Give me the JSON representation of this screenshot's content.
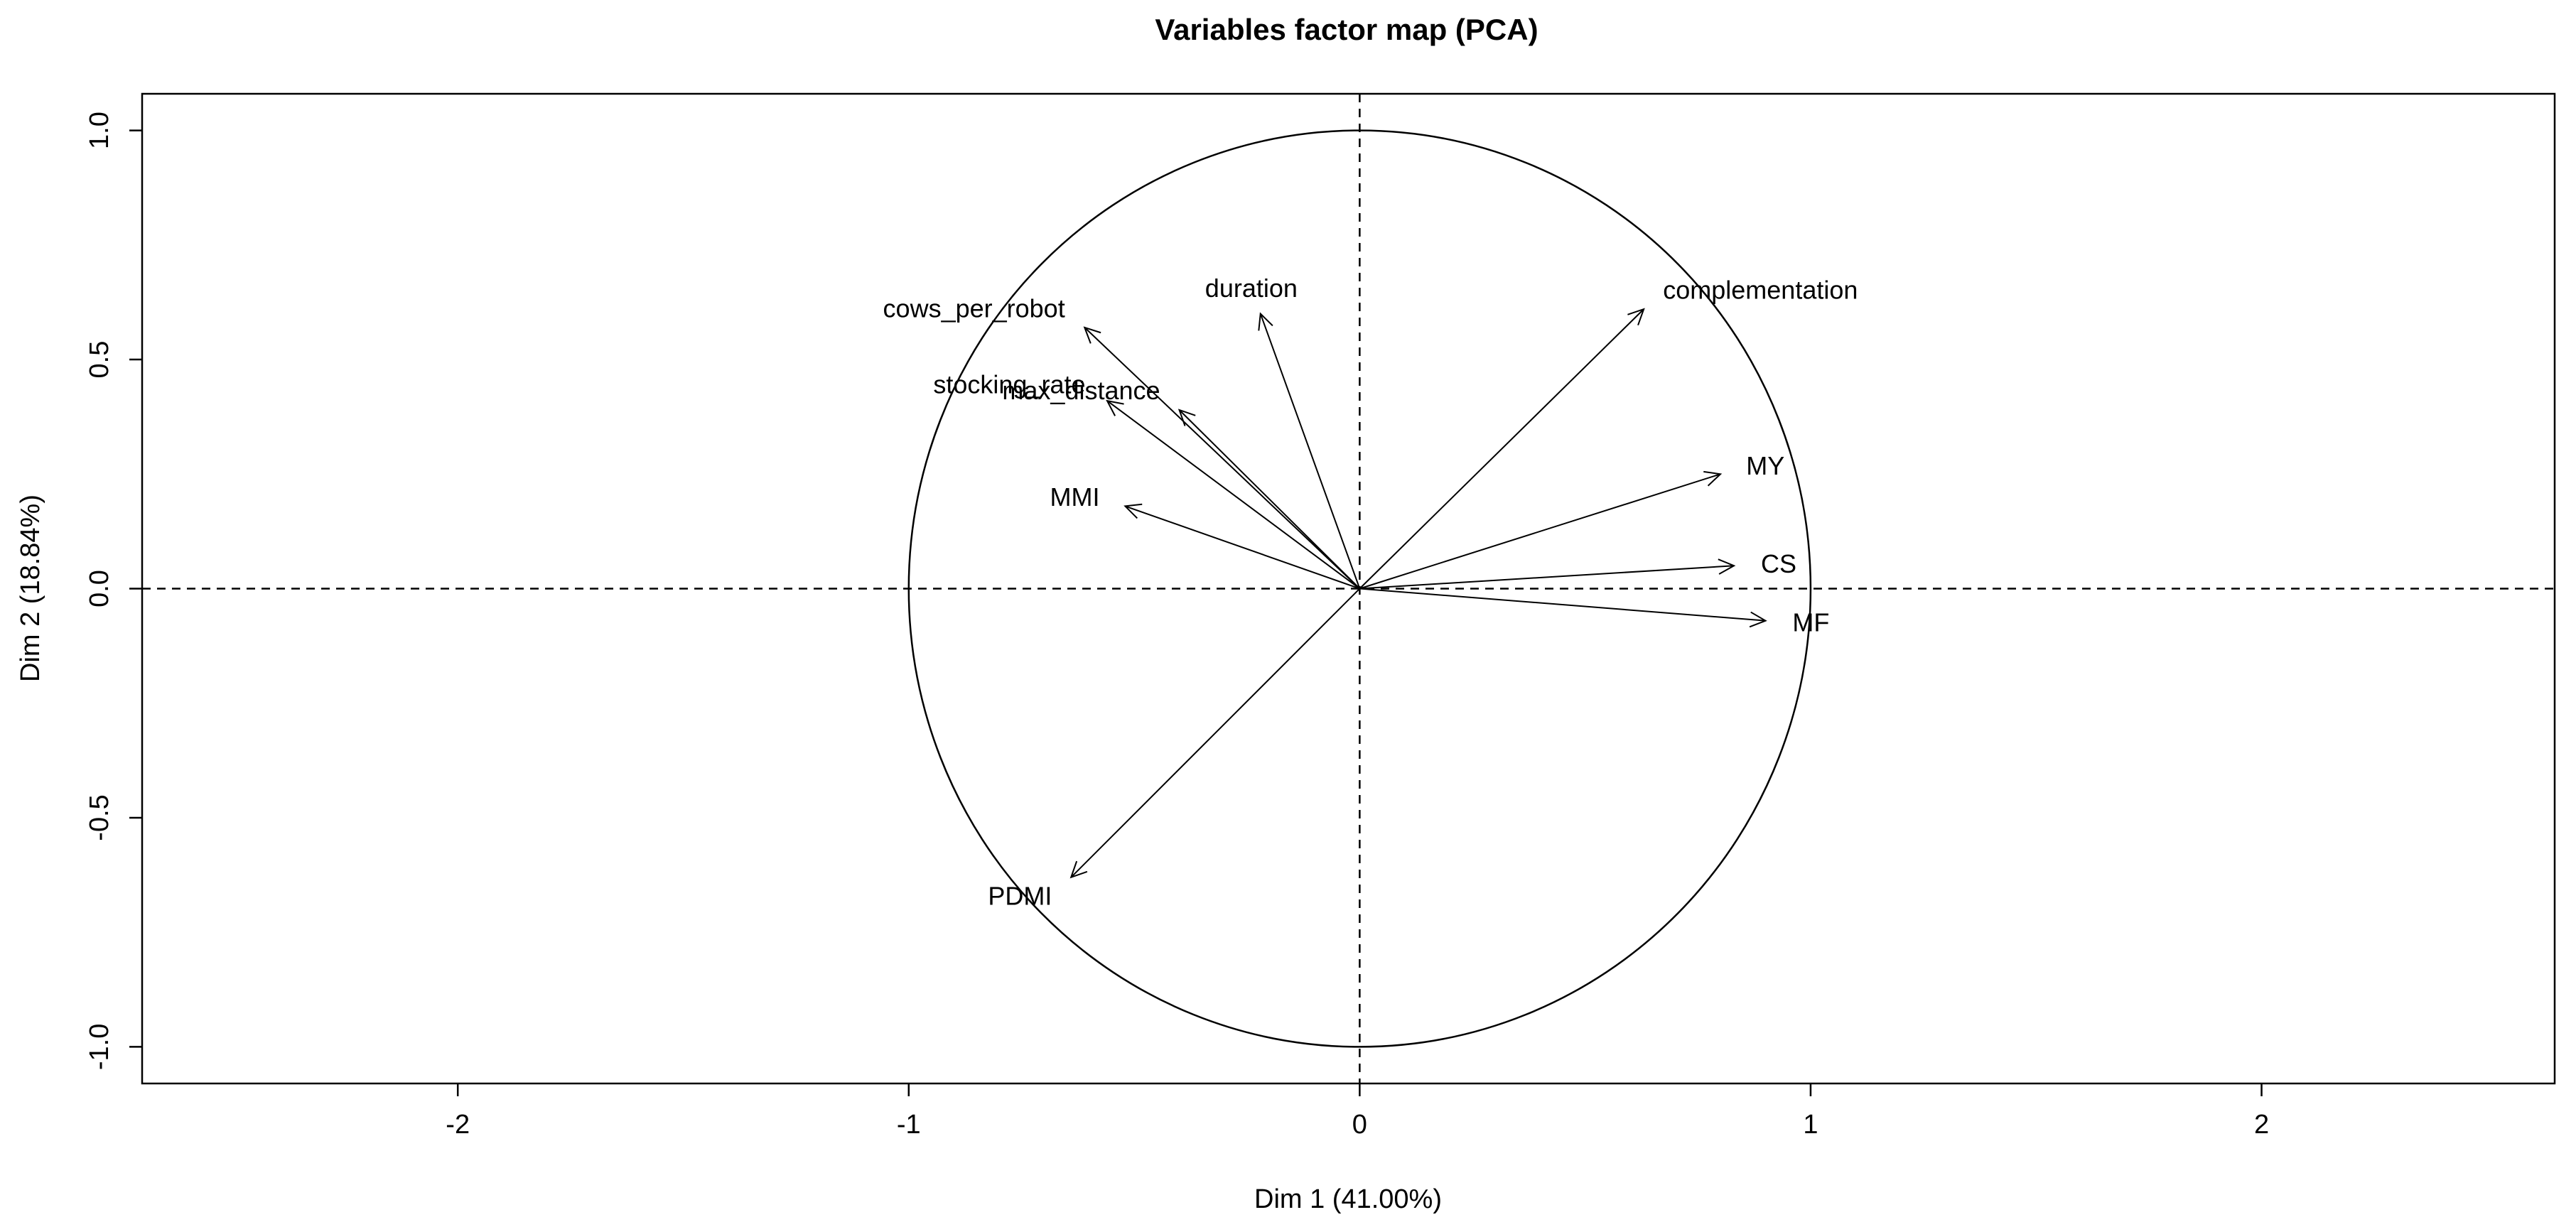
{
  "chart_data": {
    "type": "scatter",
    "subtype": "pca-variables-factor-map",
    "title": "Variables factor map (PCA)",
    "xlabel": "Dim 1 (41.00%)",
    "ylabel": "Dim 2 (18.84%)",
    "xlim": [
      -2.7,
      2.65
    ],
    "ylim": [
      -1.08,
      1.08
    ],
    "x_ticks": [
      -2,
      -1,
      0,
      1,
      2
    ],
    "x_tick_labels": [
      "-2",
      "-1",
      "0",
      "1",
      "2"
    ],
    "y_ticks": [
      -1.0,
      -0.5,
      0.0,
      0.5,
      1.0
    ],
    "y_tick_labels": [
      "-1.0",
      "-0.5",
      "0.0",
      "0.5",
      "1.0"
    ],
    "unit_circle": true,
    "reference_lines": [
      {
        "axis": "x",
        "value": 0,
        "style": "dashed"
      },
      {
        "axis": "y",
        "value": 0,
        "style": "dashed"
      }
    ],
    "grid": false,
    "variables": [
      {
        "name": "duration",
        "x": -0.22,
        "y": 0.6
      },
      {
        "name": "cows_per_robot",
        "x": -0.61,
        "y": 0.57
      },
      {
        "name": "stocking_rate",
        "x": -0.56,
        "y": 0.41
      },
      {
        "name": "max_distance",
        "x": -0.4,
        "y": 0.39
      },
      {
        "name": "MMI",
        "x": -0.52,
        "y": 0.18
      },
      {
        "name": "complementation",
        "x": 0.63,
        "y": 0.61
      },
      {
        "name": "MY",
        "x": 0.8,
        "y": 0.25
      },
      {
        "name": "CS",
        "x": 0.83,
        "y": 0.05
      },
      {
        "name": "MF",
        "x": 0.9,
        "y": -0.07
      },
      {
        "name": "PDMI",
        "x": -0.64,
        "y": -0.63
      }
    ]
  }
}
